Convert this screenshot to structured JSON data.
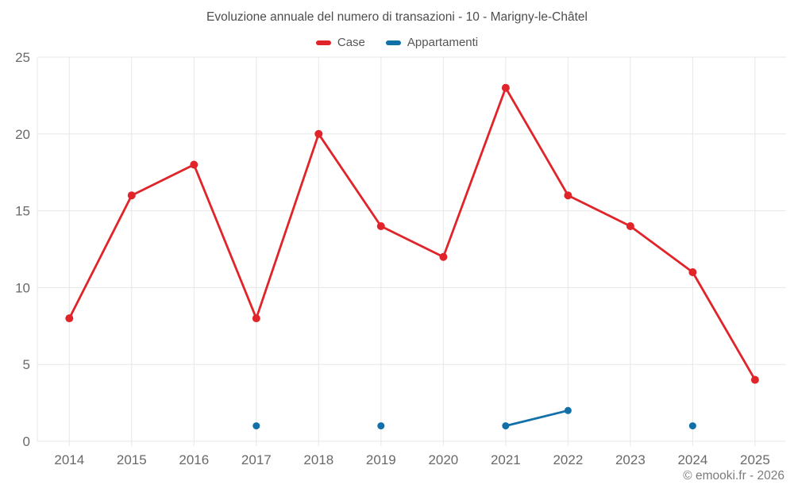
{
  "chart_data": {
    "type": "line",
    "title": "Evoluzione annuale del numero di transazioni - 10 - Marigny-le-Châtel",
    "categories": [
      "2014",
      "2015",
      "2016",
      "2017",
      "2018",
      "2019",
      "2020",
      "2021",
      "2022",
      "2023",
      "2024",
      "2025"
    ],
    "series": [
      {
        "name": "Case",
        "color": "#e02429",
        "values": [
          8,
          16,
          18,
          8,
          20,
          14,
          12,
          23,
          16,
          14,
          11,
          4
        ]
      },
      {
        "name": "Appartamenti",
        "color": "#1170a8",
        "values": [
          null,
          null,
          null,
          1,
          null,
          1,
          null,
          1,
          2,
          null,
          1,
          null
        ]
      }
    ],
    "ylim": [
      0,
      25
    ],
    "yticks": [
      0,
      5,
      10,
      15,
      20,
      25
    ],
    "grid": true,
    "legend_position": "top",
    "xlabel": "",
    "ylabel": ""
  },
  "footer": {
    "copyright": "© emooki.fr - 2026"
  },
  "colors": {
    "grid": "#e7e7e7",
    "axis_label": "#696969",
    "title": "#4d4d4d",
    "legend_label": "#555555",
    "copyright": "#7b7b7b",
    "background": "#ffffff"
  }
}
